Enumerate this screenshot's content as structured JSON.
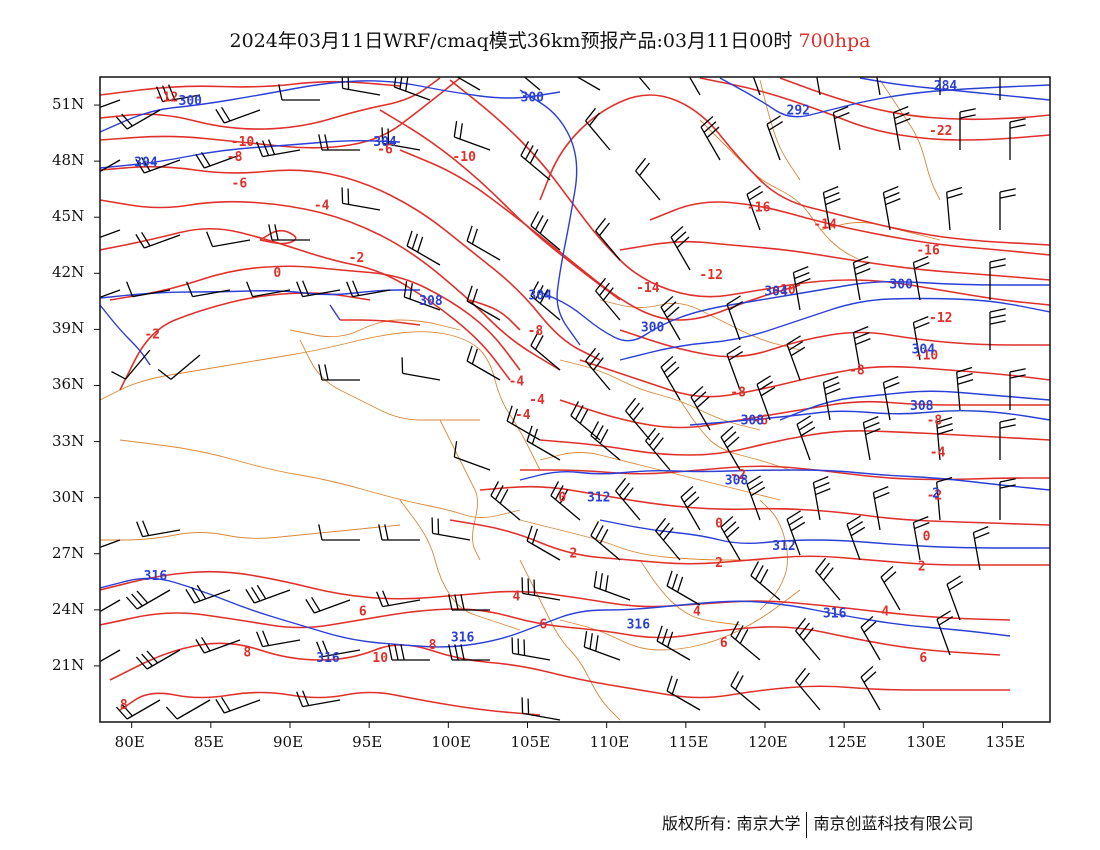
{
  "title": {
    "text": "2024年03月11日WRF/cmaq模式36km预报产品:03月11日00时",
    "level": "700hpa",
    "level_color": "#e0302b"
  },
  "axes": {
    "lat_labels": [
      "51N",
      "48N",
      "45N",
      "42N",
      "39N",
      "36N",
      "33N",
      "30N",
      "27N",
      "24N",
      "21N"
    ],
    "lon_labels": [
      "80E",
      "85E",
      "90E",
      "95E",
      "100E",
      "105E",
      "110E",
      "115E",
      "120E",
      "125E",
      "130E",
      "135E"
    ]
  },
  "map": {
    "lon_range": [
      78,
      138
    ],
    "lat_range": [
      18,
      52.5
    ],
    "temperature_color": "#e0302b",
    "height_color": "#2a3fd6",
    "border_color": "#d9893a",
    "wind_color": "#000000",
    "temperature_labels": [
      {
        "text": "-12",
        "lon": 82.2,
        "lat": 51.2
      },
      {
        "text": "-10",
        "lon": 87.0,
        "lat": 48.8
      },
      {
        "text": "-8",
        "lon": 86.5,
        "lat": 48.0
      },
      {
        "text": "-6",
        "lon": 86.8,
        "lat": 46.6
      },
      {
        "text": "-6",
        "lon": 96.0,
        "lat": 48.4
      },
      {
        "text": "-10",
        "lon": 101.0,
        "lat": 48.0
      },
      {
        "text": "-4",
        "lon": 92.0,
        "lat": 45.4
      },
      {
        "text": "-2",
        "lon": 94.2,
        "lat": 42.6
      },
      {
        "text": "0",
        "lon": 89.2,
        "lat": 41.8
      },
      {
        "text": "-2",
        "lon": 81.3,
        "lat": 38.5
      },
      {
        "text": "-8",
        "lon": 105.5,
        "lat": 38.7
      },
      {
        "text": "-4",
        "lon": 104.3,
        "lat": 36.0
      },
      {
        "text": "-4",
        "lon": 105.6,
        "lat": 35.0
      },
      {
        "text": "-4",
        "lon": 104.7,
        "lat": 34.2
      },
      {
        "text": "-16",
        "lon": 119.6,
        "lat": 45.3
      },
      {
        "text": "-14",
        "lon": 123.8,
        "lat": 44.4
      },
      {
        "text": "-14",
        "lon": 112.6,
        "lat": 41.0
      },
      {
        "text": "-12",
        "lon": 116.6,
        "lat": 41.7
      },
      {
        "text": "-10",
        "lon": 121.2,
        "lat": 40.9
      },
      {
        "text": "-16",
        "lon": 130.3,
        "lat": 43.0
      },
      {
        "text": "-12",
        "lon": 131.1,
        "lat": 39.4
      },
      {
        "text": "-10",
        "lon": 130.2,
        "lat": 37.4
      },
      {
        "text": "-22",
        "lon": 131.1,
        "lat": 49.4
      },
      {
        "text": "-8",
        "lon": 125.8,
        "lat": 36.6
      },
      {
        "text": "-8",
        "lon": 118.3,
        "lat": 35.4
      },
      {
        "text": "-6",
        "lon": 119.7,
        "lat": 33.9
      },
      {
        "text": "-8",
        "lon": 130.7,
        "lat": 33.9
      },
      {
        "text": "-4",
        "lon": 130.9,
        "lat": 32.2
      },
      {
        "text": "-2",
        "lon": 118.3,
        "lat": 31.0
      },
      {
        "text": "-2",
        "lon": 130.7,
        "lat": 29.9
      },
      {
        "text": "0",
        "lon": 107.2,
        "lat": 29.8
      },
      {
        "text": "0",
        "lon": 117.1,
        "lat": 28.4
      },
      {
        "text": "0",
        "lon": 130.2,
        "lat": 27.7
      },
      {
        "text": "2",
        "lon": 107.9,
        "lat": 26.8
      },
      {
        "text": "2",
        "lon": 117.1,
        "lat": 26.3
      },
      {
        "text": "2",
        "lon": 129.9,
        "lat": 26.1
      },
      {
        "text": "4",
        "lon": 104.3,
        "lat": 24.5
      },
      {
        "text": "4",
        "lon": 127.6,
        "lat": 23.7
      },
      {
        "text": "4",
        "lon": 115.7,
        "lat": 23.7
      },
      {
        "text": "6",
        "lon": 94.6,
        "lat": 23.7
      },
      {
        "text": "6",
        "lon": 106.0,
        "lat": 23.0
      },
      {
        "text": "6",
        "lon": 130.0,
        "lat": 21.2
      },
      {
        "text": "6",
        "lon": 117.4,
        "lat": 22.0
      },
      {
        "text": "8",
        "lon": 99.0,
        "lat": 21.9
      },
      {
        "text": "8",
        "lon": 87.3,
        "lat": 21.5
      },
      {
        "text": "8",
        "lon": 79.5,
        "lat": 18.7
      },
      {
        "text": "10",
        "lon": 95.7,
        "lat": 21.2
      }
    ],
    "height_labels": [
      {
        "text": "300",
        "lon": 83.7,
        "lat": 51.0
      },
      {
        "text": "304",
        "lon": 80.9,
        "lat": 47.7
      },
      {
        "text": "300",
        "lon": 105.3,
        "lat": 51.2
      },
      {
        "text": "304",
        "lon": 96.0,
        "lat": 48.8
      },
      {
        "text": "292",
        "lon": 122.1,
        "lat": 50.5
      },
      {
        "text": "284",
        "lon": 131.4,
        "lat": 51.8
      },
      {
        "text": "308",
        "lon": 98.9,
        "lat": 40.3
      },
      {
        "text": "304",
        "lon": 105.8,
        "lat": 40.6
      },
      {
        "text": "300",
        "lon": 112.9,
        "lat": 38.9
      },
      {
        "text": "304",
        "lon": 120.7,
        "lat": 40.8
      },
      {
        "text": "300",
        "lon": 128.6,
        "lat": 41.2
      },
      {
        "text": "304",
        "lon": 130.0,
        "lat": 37.7
      },
      {
        "text": "308",
        "lon": 129.9,
        "lat": 34.7
      },
      {
        "text": "308",
        "lon": 119.2,
        "lat": 33.9
      },
      {
        "text": "308",
        "lon": 118.2,
        "lat": 30.7
      },
      {
        "text": "312",
        "lon": 109.5,
        "lat": 29.8
      },
      {
        "text": "312",
        "lon": 121.2,
        "lat": 27.2
      },
      {
        "text": "316",
        "lon": 81.5,
        "lat": 25.6
      },
      {
        "text": "316",
        "lon": 112.0,
        "lat": 23.0
      },
      {
        "text": "316",
        "lon": 124.4,
        "lat": 23.6
      },
      {
        "text": "316",
        "lon": 100.9,
        "lat": 22.3
      },
      {
        "text": "316",
        "lon": 92.4,
        "lat": 21.2
      },
      {
        "text": "2",
        "lon": 130.8,
        "lat": 30.0
      }
    ]
  },
  "footer": {
    "copyright": "版权所有: 南京大学",
    "company": "南京创蓝科技有限公司"
  }
}
